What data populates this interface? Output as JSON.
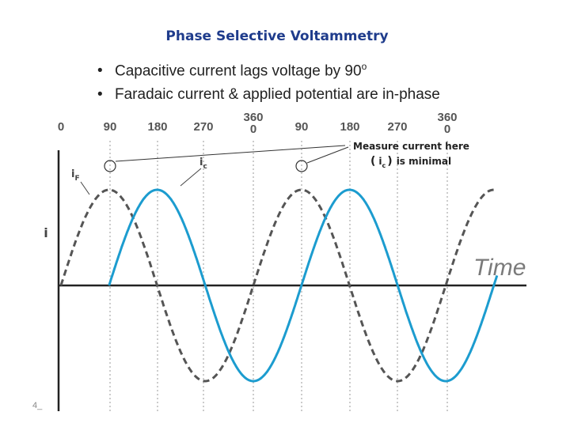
{
  "slide": {
    "title": "Phase Selective Voltammetry",
    "bullets": [
      {
        "text": "Capacitive current lags voltage by 90",
        "superscript": "o"
      },
      {
        "text": "Faradaic current & applied potential are in-phase"
      }
    ],
    "page_number": "4_"
  },
  "diagram": {
    "phase_labels_row1": [
      "0",
      "90",
      "180",
      "270",
      "0",
      "90",
      "180",
      "270",
      "0"
    ],
    "phase_labels_row2": [
      "360",
      "360"
    ],
    "y_axis_label": "i",
    "x_axis_label": "Time",
    "faradaic_label": {
      "main": "i",
      "sub": "F"
    },
    "capacitive_label": {
      "main": "i",
      "sub": "c"
    },
    "callout_line1": "Measure current here",
    "callout_open": "(",
    "callout_i": "i",
    "callout_sub": "c",
    "callout_close": ")",
    "callout_rest": "is minimal",
    "colors": {
      "faradaic": "#555555",
      "capacitive": "#1c9ccf",
      "axis": "#222222",
      "grid": "#999999",
      "title": "#1f3c8c"
    }
  }
}
